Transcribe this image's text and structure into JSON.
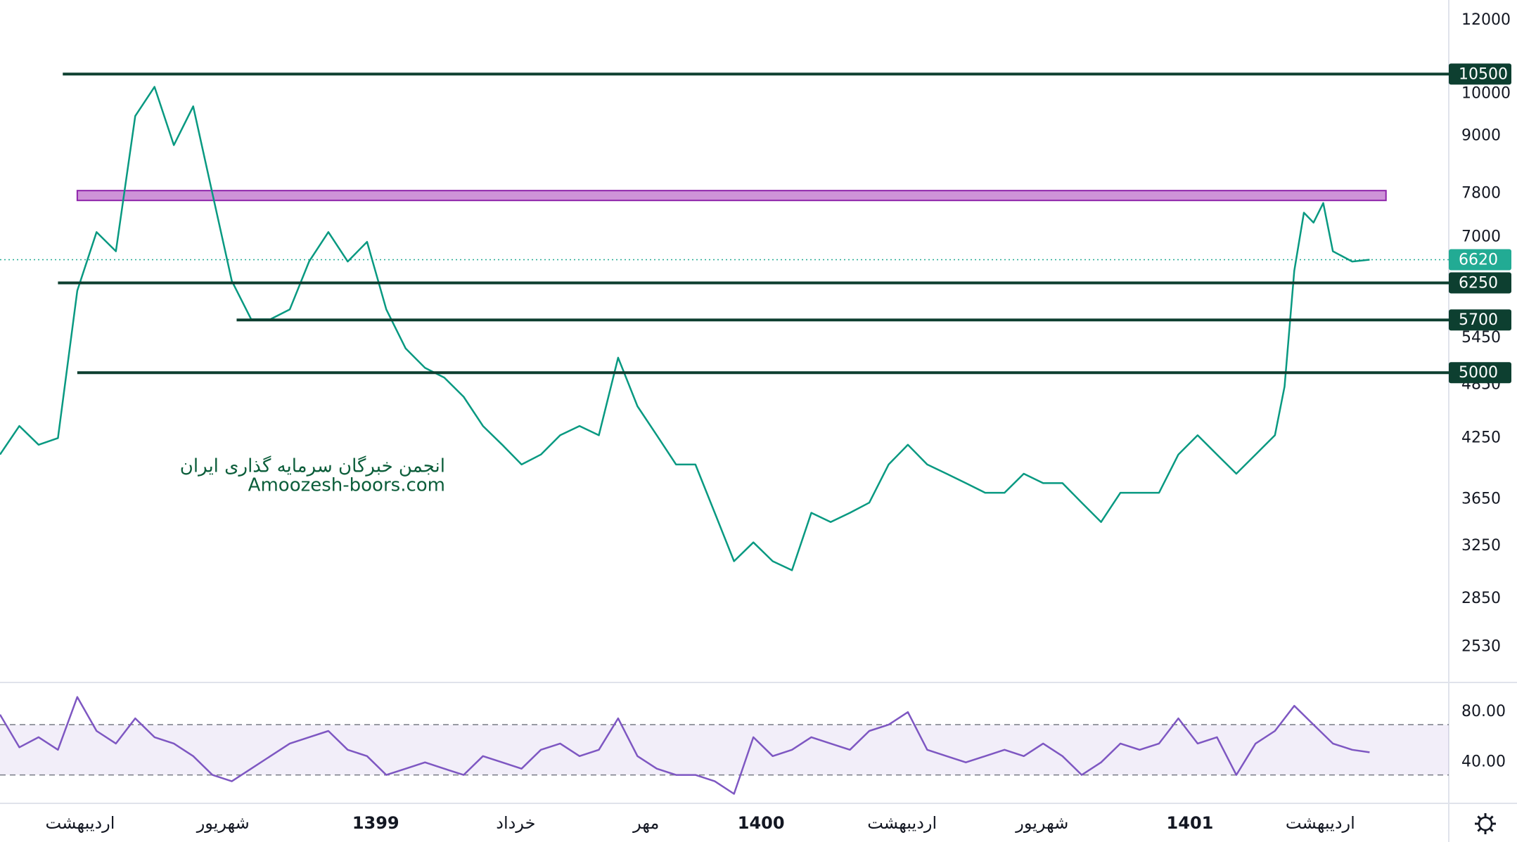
{
  "chart_data": [
    {
      "type": "line",
      "log_scale": true,
      "color": "#089981",
      "xlim": [
        0,
        150
      ],
      "ylim": [
        2320,
        12620
      ],
      "yticks": [
        12000,
        10000,
        9000,
        7800,
        7000,
        5450,
        4850,
        4250,
        3650,
        3250,
        2850,
        2530
      ],
      "x": [
        0,
        2,
        4,
        6,
        8,
        10,
        12,
        14,
        16,
        18,
        20,
        22,
        24,
        26,
        28,
        30,
        32,
        34,
        36,
        38,
        40,
        42,
        44,
        46,
        48,
        50,
        52,
        54,
        56,
        58,
        60,
        62,
        64,
        66,
        68,
        70,
        72,
        74,
        76,
        78,
        80,
        82,
        84,
        86,
        88,
        90,
        92,
        94,
        96,
        98,
        100,
        102,
        104,
        106,
        108,
        110,
        112,
        114,
        116,
        118,
        120,
        122,
        124,
        126,
        128,
        130,
        132,
        133,
        134,
        135,
        136,
        137,
        138,
        140,
        141.8
      ],
      "values": [
        4080,
        4380,
        4180,
        4250,
        6130,
        7090,
        6760,
        9460,
        10170,
        8800,
        9690,
        7800,
        6280,
        5710,
        5710,
        5850,
        6590,
        7090,
        6590,
        6920,
        5850,
        5310,
        5060,
        4940,
        4710,
        4380,
        4180,
        3980,
        4080,
        4280,
        4380,
        4280,
        5190,
        4600,
        4280,
        3980,
        3980,
        3530,
        3130,
        3280,
        3130,
        3060,
        3530,
        3450,
        3530,
        3620,
        3980,
        4180,
        3980,
        3890,
        3800,
        3710,
        3710,
        3890,
        3800,
        3800,
        3620,
        3450,
        3710,
        3710,
        3710,
        4080,
        4280,
        4080,
        3890,
        4080,
        4280,
        4830,
        6440,
        7440,
        7260,
        7620,
        6760,
        6590,
        6620
      ],
      "levels": [
        10500,
        6250,
        5700,
        5000
      ],
      "levels_from": [
        6.5,
        6,
        24.5,
        8
      ],
      "level_color": "#0d3f30",
      "current": 6620,
      "current_color": "#22ab94",
      "zone": [
        7670,
        7860
      ],
      "zone_x": [
        8,
        143.5
      ],
      "zone_color": "#ce93d8",
      "watermark": [
        "انجمن خبرگان سرمایه گذاری ایران",
        "Amoozesh-boors.com"
      ]
    },
    {
      "type": "line",
      "color": "#7e57c2",
      "xlim": [
        0,
        150
      ],
      "ylim": [
        8,
        103
      ],
      "yticks": [
        {
          "value": 80,
          "label": "80.00"
        },
        {
          "value": 40,
          "label": "40.00"
        }
      ],
      "band": [
        30,
        70
      ],
      "xticks": [
        {
          "value": 8.3,
          "label": "اردیبهشت"
        },
        {
          "value": 23.1,
          "label": "شهریور"
        },
        {
          "value": 38.9,
          "label": "1399"
        },
        {
          "value": 53.4,
          "label": "خرداد"
        },
        {
          "value": 66.9,
          "label": "مهر"
        },
        {
          "value": 78.8,
          "label": "1400"
        },
        {
          "value": 93.4,
          "label": "اردیبهشت"
        },
        {
          "value": 107.9,
          "label": "شهریور"
        },
        {
          "value": 123.2,
          "label": "1401"
        },
        {
          "value": 136.7,
          "label": "اردیبهشت"
        }
      ],
      "x": [
        0,
        2,
        4,
        6,
        8,
        10,
        12,
        14,
        16,
        18,
        20,
        22,
        24,
        26,
        28,
        30,
        32,
        34,
        36,
        38,
        40,
        42,
        44,
        46,
        48,
        50,
        52,
        54,
        56,
        58,
        60,
        62,
        64,
        66,
        68,
        70,
        72,
        74,
        76,
        78,
        80,
        82,
        84,
        86,
        88,
        90,
        92,
        94,
        96,
        98,
        100,
        102,
        104,
        106,
        108,
        110,
        112,
        114,
        116,
        118,
        120,
        122,
        124,
        126,
        128,
        130,
        132,
        134,
        136,
        138,
        140,
        141.8
      ],
      "values": [
        78,
        52,
        60,
        50,
        92,
        65,
        55,
        75,
        60,
        55,
        45,
        30,
        25,
        35,
        45,
        55,
        60,
        65,
        50,
        45,
        30,
        35,
        40,
        35,
        30,
        45,
        40,
        35,
        50,
        55,
        45,
        50,
        75,
        45,
        35,
        30,
        30,
        25,
        15,
        60,
        45,
        50,
        60,
        55,
        50,
        65,
        70,
        80,
        50,
        45,
        40,
        45,
        50,
        45,
        55,
        45,
        30,
        40,
        55,
        50,
        55,
        75,
        55,
        60,
        30,
        55,
        65,
        85,
        70,
        55,
        50,
        48
      ]
    }
  ]
}
